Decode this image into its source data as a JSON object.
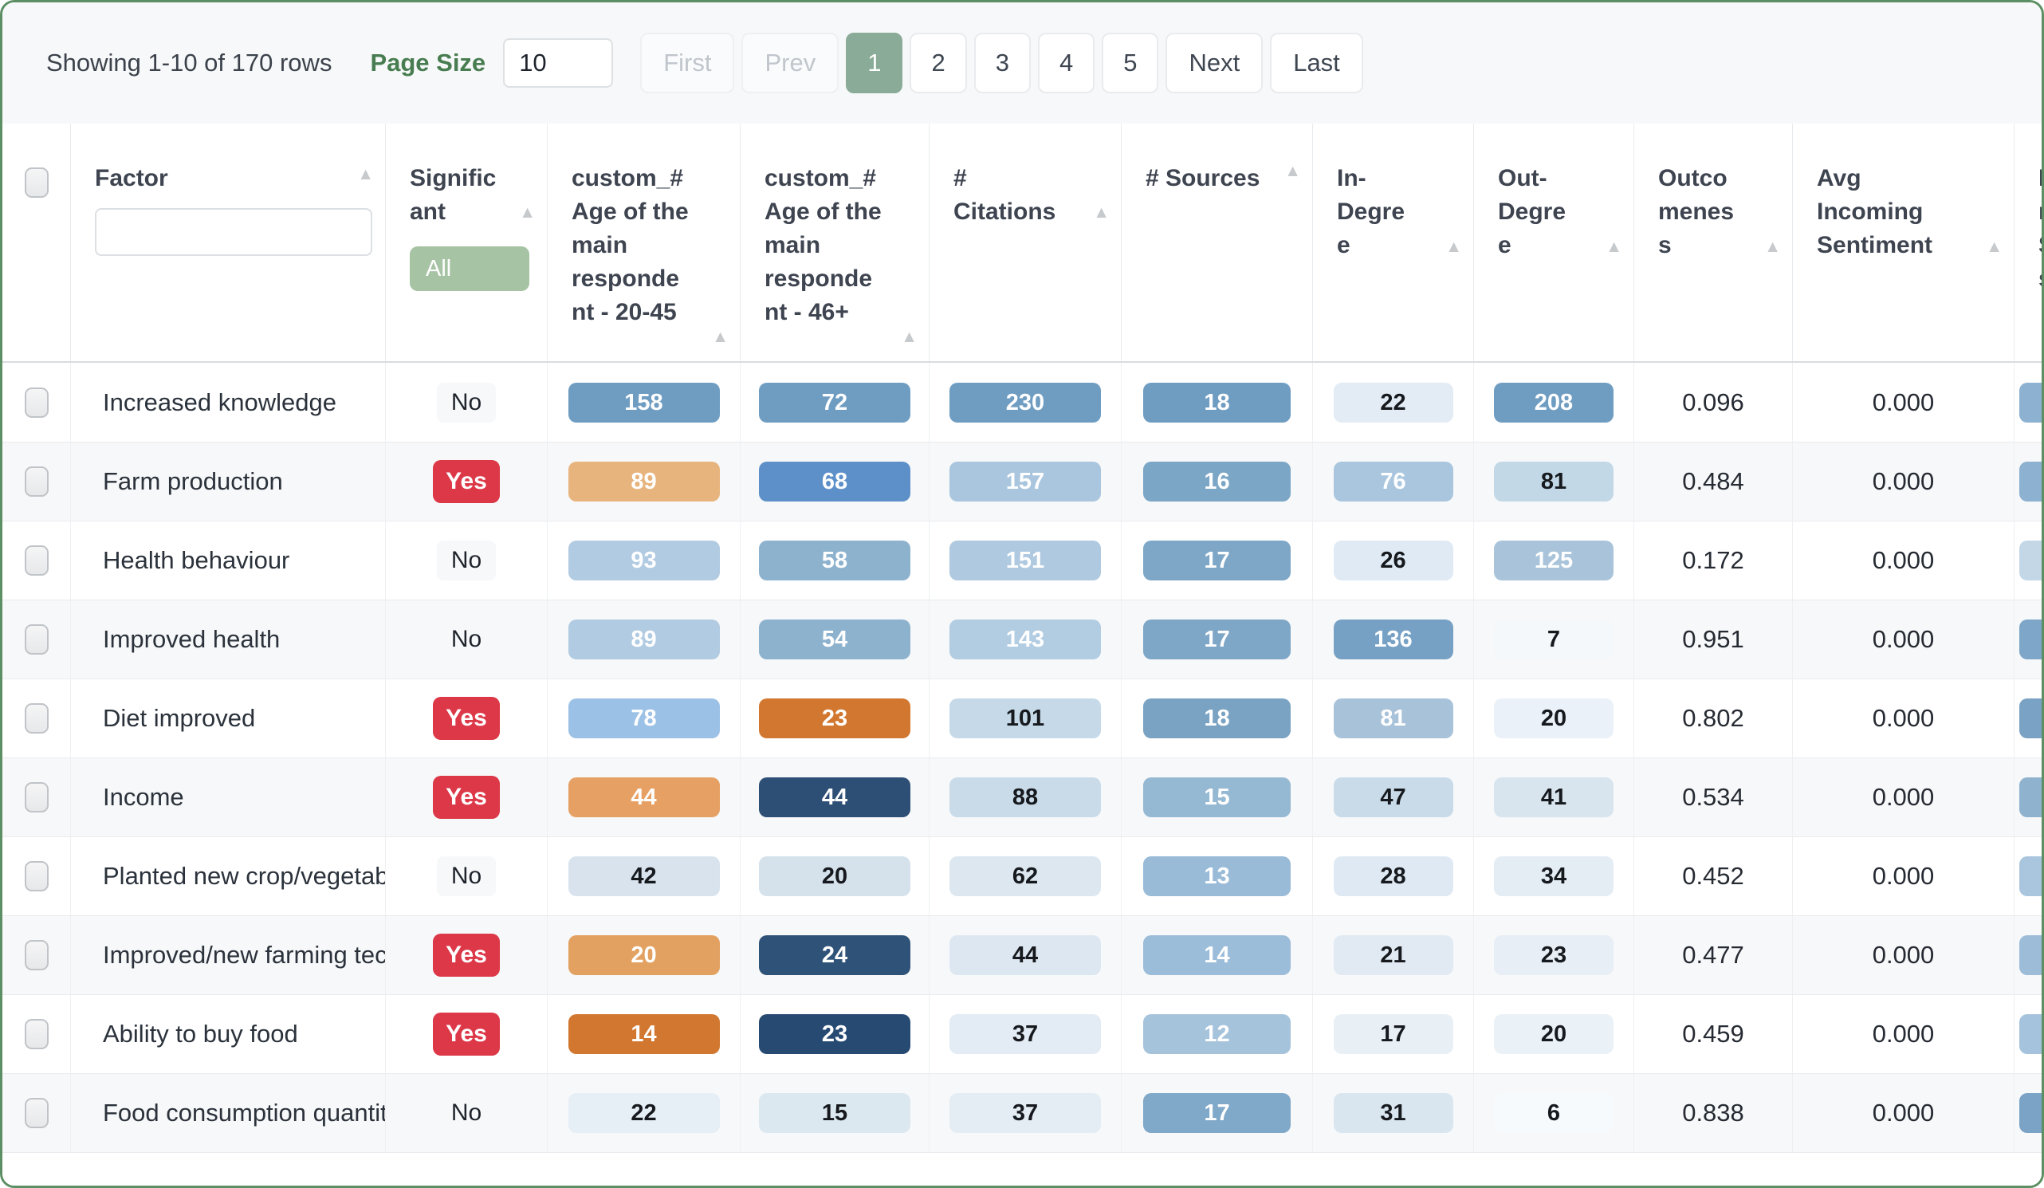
{
  "toolbar": {
    "showing_text": "Showing 1-10 of 170 rows",
    "page_size_label": "Page Size",
    "page_size_value": "10",
    "pagination": [
      {
        "label": "First",
        "state": "disabled"
      },
      {
        "label": "Prev",
        "state": "disabled"
      },
      {
        "label": "1",
        "state": "active"
      },
      {
        "label": "2",
        "state": "normal"
      },
      {
        "label": "3",
        "state": "normal"
      },
      {
        "label": "4",
        "state": "normal"
      },
      {
        "label": "5",
        "state": "normal"
      },
      {
        "label": "Next",
        "state": "normal"
      },
      {
        "label": "Last",
        "state": "normal"
      }
    ]
  },
  "colors": {
    "accent_green_active_page": "#8aab97",
    "accent_green_all_badge": "#a6c3a4",
    "accent_green_label": "#477d50",
    "card_border_green": "#5c8f63",
    "significant_yes_red": "#dc3848"
  },
  "table": {
    "columns": [
      {
        "label": "Factor",
        "has_filter_input": true,
        "filter_value": ""
      },
      {
        "label": "Significant",
        "filter_badge": "All"
      },
      {
        "label": "custom_# Age of the main respondent - 20-45"
      },
      {
        "label": "custom_# Age of the main respondent - 46+"
      },
      {
        "label": "# Citations"
      },
      {
        "label": "# Sources"
      },
      {
        "label": "In-Degree"
      },
      {
        "label": "Out-Degree"
      },
      {
        "label": "Outcomeness"
      },
      {
        "label": "Avg Incoming Sentiment"
      },
      {
        "label": "In S s",
        "truncated": true,
        "no_arrow": true
      }
    ],
    "rows": [
      {
        "factor": "Increased knowledge",
        "significant": "No",
        "cells": [
          {
            "v": "158",
            "bg": "#6f9dc2",
            "fg": "#ffffff"
          },
          {
            "v": "72",
            "bg": "#6f9dc2",
            "fg": "#ffffff"
          },
          {
            "v": "230",
            "bg": "#6f9dc2",
            "fg": "#ffffff"
          },
          {
            "v": "18",
            "bg": "#6f9dc2",
            "fg": "#ffffff"
          },
          {
            "v": "22",
            "bg": "#e3ecf5",
            "fg": "#16191d"
          },
          {
            "v": "208",
            "bg": "#6f9dc2",
            "fg": "#ffffff"
          }
        ],
        "outcomeness": "0.096",
        "avg_incoming_sentiment": "0.000",
        "edge_badge_bg": "#8db1d0"
      },
      {
        "factor": "Farm production",
        "significant": "Yes",
        "cells": [
          {
            "v": "89",
            "bg": "#e7b47e",
            "fg": "#ffffff"
          },
          {
            "v": "68",
            "bg": "#5d90c8",
            "fg": "#ffffff"
          },
          {
            "v": "157",
            "bg": "#a9c6de",
            "fg": "#ffffff"
          },
          {
            "v": "16",
            "bg": "#7ba6c6",
            "fg": "#ffffff"
          },
          {
            "v": "76",
            "bg": "#a9c6de",
            "fg": "#ffffff"
          },
          {
            "v": "81",
            "bg": "#c3d8e7",
            "fg": "#16191d"
          }
        ],
        "outcomeness": "0.484",
        "avg_incoming_sentiment": "0.000",
        "edge_badge_bg": "#8db1d0"
      },
      {
        "factor": "Health behaviour",
        "significant": "No",
        "cells": [
          {
            "v": "93",
            "bg": "#b1cbe2",
            "fg": "#ffffff"
          },
          {
            "v": "58",
            "bg": "#8db2ce",
            "fg": "#ffffff"
          },
          {
            "v": "151",
            "bg": "#afc9e0",
            "fg": "#ffffff"
          },
          {
            "v": "17",
            "bg": "#7ea7c7",
            "fg": "#ffffff"
          },
          {
            "v": "26",
            "bg": "#dfeaf4",
            "fg": "#16191d"
          },
          {
            "v": "125",
            "bg": "#a9c4da",
            "fg": "#ffffff"
          }
        ],
        "outcomeness": "0.172",
        "avg_incoming_sentiment": "0.000",
        "edge_badge_bg": "#c3d7e6"
      },
      {
        "factor": "Improved health",
        "significant": "No",
        "cells": [
          {
            "v": "89",
            "bg": "#b1cbe2",
            "fg": "#ffffff"
          },
          {
            "v": "54",
            "bg": "#8db2ce",
            "fg": "#ffffff"
          },
          {
            "v": "143",
            "bg": "#b2cce2",
            "fg": "#ffffff"
          },
          {
            "v": "17",
            "bg": "#7ea7c7",
            "fg": "#ffffff"
          },
          {
            "v": "136",
            "bg": "#76a1c5",
            "fg": "#ffffff"
          },
          {
            "v": "7",
            "bg": "#f4f8fb",
            "fg": "#16191d"
          }
        ],
        "outcomeness": "0.951",
        "avg_incoming_sentiment": "0.000",
        "edge_badge_bg": "#7ea6c8"
      },
      {
        "factor": "Diet improved",
        "significant": "Yes",
        "cells": [
          {
            "v": "78",
            "bg": "#9cc1e6",
            "fg": "#ffffff"
          },
          {
            "v": "23",
            "bg": "#d2772f",
            "fg": "#ffffff"
          },
          {
            "v": "101",
            "bg": "#c5d9e8",
            "fg": "#16191d"
          },
          {
            "v": "18",
            "bg": "#7aa3c3",
            "fg": "#ffffff"
          },
          {
            "v": "81",
            "bg": "#a7c2d9",
            "fg": "#ffffff"
          },
          {
            "v": "20",
            "bg": "#eaf1f8",
            "fg": "#16191d"
          }
        ],
        "outcomeness": "0.802",
        "avg_incoming_sentiment": "0.000",
        "edge_badge_bg": "#7aa2c4"
      },
      {
        "factor": "Income",
        "significant": "Yes",
        "cells": [
          {
            "v": "44",
            "bg": "#e6a063",
            "fg": "#ffffff"
          },
          {
            "v": "44",
            "bg": "#2d4e75",
            "fg": "#ffffff"
          },
          {
            "v": "88",
            "bg": "#c9dbe9",
            "fg": "#16191d"
          },
          {
            "v": "15",
            "bg": "#96b9d3",
            "fg": "#ffffff"
          },
          {
            "v": "47",
            "bg": "#c9dbe9",
            "fg": "#16191d"
          },
          {
            "v": "41",
            "bg": "#d8e5ef",
            "fg": "#16191d"
          }
        ],
        "outcomeness": "0.534",
        "avg_incoming_sentiment": "0.000",
        "edge_badge_bg": "#8fb2cf"
      },
      {
        "factor": "Planted new crop/vegetabl",
        "significant": "No",
        "cells": [
          {
            "v": "42",
            "bg": "#d8e3ee",
            "fg": "#16191d"
          },
          {
            "v": "20",
            "bg": "#d5e2ec",
            "fg": "#16191d"
          },
          {
            "v": "62",
            "bg": "#dce7f0",
            "fg": "#16191d"
          },
          {
            "v": "13",
            "bg": "#99bbd8",
            "fg": "#ffffff"
          },
          {
            "v": "28",
            "bg": "#dfe9f3",
            "fg": "#16191d"
          },
          {
            "v": "34",
            "bg": "#e4ecf4",
            "fg": "#16191d"
          }
        ],
        "outcomeness": "0.452",
        "avg_incoming_sentiment": "0.000",
        "edge_badge_bg": "#a9c6de"
      },
      {
        "factor": "Improved/new farming tec",
        "significant": "Yes",
        "cells": [
          {
            "v": "20",
            "bg": "#e2a160",
            "fg": "#ffffff"
          },
          {
            "v": "24",
            "bg": "#2f5378",
            "fg": "#ffffff"
          },
          {
            "v": "44",
            "bg": "#dde7f1",
            "fg": "#16191d"
          },
          {
            "v": "14",
            "bg": "#9cbdd9",
            "fg": "#ffffff"
          },
          {
            "v": "21",
            "bg": "#e1eaf3",
            "fg": "#16191d"
          },
          {
            "v": "23",
            "bg": "#e7eef5",
            "fg": "#16191d"
          }
        ],
        "outcomeness": "0.477",
        "avg_incoming_sentiment": "0.000",
        "edge_badge_bg": "#9cbcd8"
      },
      {
        "factor": "Ability to buy food",
        "significant": "Yes",
        "cells": [
          {
            "v": "14",
            "bg": "#d2772f",
            "fg": "#ffffff"
          },
          {
            "v": "23",
            "bg": "#274a72",
            "fg": "#ffffff"
          },
          {
            "v": "37",
            "bg": "#e3ecf4",
            "fg": "#16191d"
          },
          {
            "v": "12",
            "bg": "#a6c3dc",
            "fg": "#ffffff"
          },
          {
            "v": "17",
            "bg": "#e8f0f6",
            "fg": "#16191d"
          },
          {
            "v": "20",
            "bg": "#eaf1f7",
            "fg": "#16191d"
          }
        ],
        "outcomeness": "0.459",
        "avg_incoming_sentiment": "0.000",
        "edge_badge_bg": "#a5c3dc"
      },
      {
        "factor": "Food consumption quantit",
        "significant": "No",
        "cells": [
          {
            "v": "22",
            "bg": "#e6eef6",
            "fg": "#16191d"
          },
          {
            "v": "15",
            "bg": "#dce8f0",
            "fg": "#16191d"
          },
          {
            "v": "37",
            "bg": "#e4edf4",
            "fg": "#16191d"
          },
          {
            "v": "17",
            "bg": "#7fa8c9",
            "fg": "#ffffff"
          },
          {
            "v": "31",
            "bg": "#d9e6f0",
            "fg": "#16191d"
          },
          {
            "v": "6",
            "bg": "#f7fafc",
            "fg": "#16191d"
          }
        ],
        "outcomeness": "0.838",
        "avg_incoming_sentiment": "0.000",
        "edge_badge_bg": "#7aa3c6"
      }
    ]
  }
}
